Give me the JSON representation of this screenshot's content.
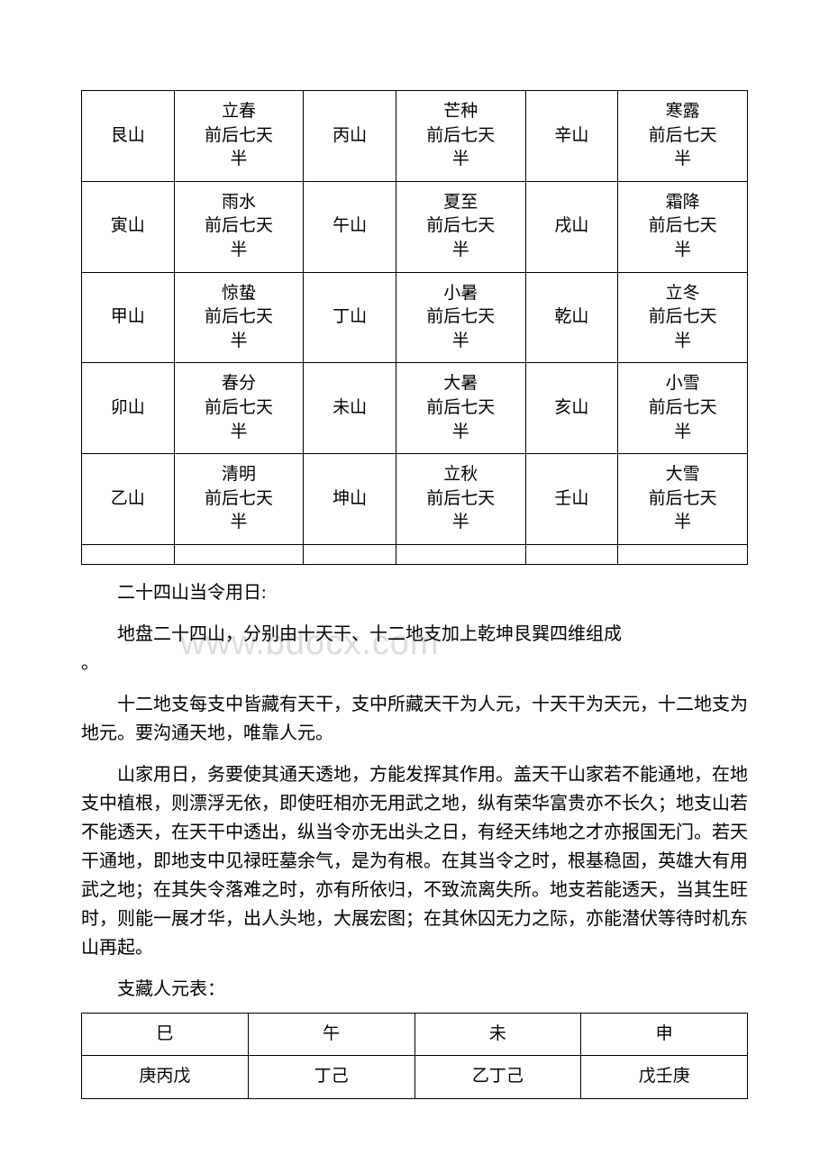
{
  "table1": {
    "rows": [
      [
        "艮山",
        "立春前后七天半",
        "丙山",
        "芒种前后七天半",
        "辛山",
        "寒露前后七天半"
      ],
      [
        "寅山",
        "雨水前后七天半",
        "午山",
        "夏至前后七天半",
        "戌山",
        "霜降前后七天半"
      ],
      [
        "甲山",
        "惊蛰前后七天半",
        "丁山",
        "小暑前后七天半",
        "乾山",
        "立冬前后七天半"
      ],
      [
        "卯山",
        "春分前后七天半",
        "未山",
        "大暑前后七天半",
        "亥山",
        "小雪前后七天半"
      ],
      [
        "乙山",
        "清明前后七天半",
        "坤山",
        "立秋前后七天半",
        "壬山",
        "大雪前后七天半"
      ]
    ]
  },
  "watermark": "www.bdocx.com",
  "paragraphs": {
    "p1": "二十四山当令用日:",
    "p2a": "地盘二十四山，分别由十天干、十二地支加上乾坤艮巽四维组成",
    "p2b": "。",
    "p3": "十二地支每支中皆藏有天干，支中所藏天干为人元，十天干为天元，十二地支为地元。要沟通天地，唯靠人元。",
    "p4": "山家用日，务要使其通天透地，方能发挥其作用。盖天干山家若不能通地，在地支中植根，则漂浮无依，即使旺相亦无用武之地，纵有荣华富贵亦不长久；地支山若不能透天，在天干中透出，纵当令亦无出头之日，有经天纬地之才亦报国无门。若天干通地，即地支中见禄旺墓余气，是为有根。在其当令之时，根基稳固，英雄大有用武之地；在其失令落难之时，亦有所依归，不致流离失所。地支若能透天，当其生旺时，则能一展才华，出人头地，大展宏图；在其休囚无力之际，亦能潜伏等待时机东山再起。",
    "p5": "支藏人元表："
  },
  "table2": {
    "headers": [
      "巳",
      "午",
      "未",
      "申"
    ],
    "row": [
      "庚丙戊",
      "丁己",
      "乙丁己",
      "戊壬庚"
    ]
  },
  "colors": {
    "text": "#000000",
    "background": "#ffffff",
    "border": "#000000",
    "watermark": "rgba(180,180,180,0.45)"
  }
}
